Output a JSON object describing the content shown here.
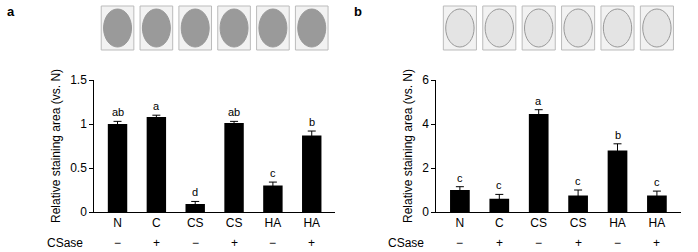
{
  "chart_data": [
    {
      "type": "bar",
      "title": "a",
      "categories": [
        "N",
        "C",
        "CS",
        "CS",
        "HA",
        "HA"
      ],
      "values": [
        1.0,
        1.08,
        0.09,
        1.01,
        0.3,
        0.87
      ],
      "errors": [
        0.03,
        0.02,
        0.03,
        0.02,
        0.04,
        0.05
      ],
      "letters": [
        "ab",
        "a",
        "d",
        "ab",
        "c",
        "b"
      ],
      "row_label": "CSase",
      "csase": [
        "−",
        "+",
        "−",
        "+",
        "−",
        "+"
      ],
      "y_label": "Relative staining area (vs. N)",
      "ylim": [
        0,
        1.5
      ],
      "yticks": [
        0,
        0.5,
        1,
        1.5
      ],
      "color": "#000000",
      "grid": false
    },
    {
      "type": "bar",
      "title": "b",
      "categories": [
        "N",
        "C",
        "CS",
        "CS",
        "HA",
        "HA"
      ],
      "values": [
        1.0,
        0.6,
        4.45,
        0.75,
        2.8,
        0.75
      ],
      "errors": [
        0.15,
        0.2,
        0.2,
        0.25,
        0.3,
        0.2
      ],
      "letters": [
        "c",
        "c",
        "a",
        "c",
        "b",
        "c"
      ],
      "row_label": "CSase",
      "csase": [
        "−",
        "+",
        "−",
        "+",
        "−",
        "+"
      ],
      "y_label": "Relative staining area (vs. N)",
      "ylim": [
        0,
        6
      ],
      "yticks": [
        0,
        2,
        4,
        6
      ],
      "color": "#000000",
      "grid": false
    }
  ]
}
